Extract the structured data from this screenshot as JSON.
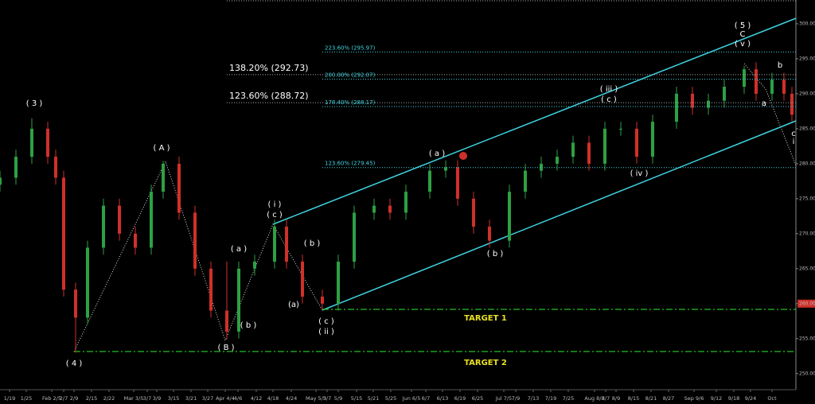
{
  "chart_data": {
    "type": "candlestick",
    "x": [
      0,
      4,
      8,
      12,
      14,
      16,
      19,
      22,
      26,
      30,
      34,
      38,
      41,
      45,
      49,
      53,
      57,
      60,
      64,
      69,
      72,
      76,
      81,
      85,
      89,
      94,
      98,
      102,
      108,
      112,
      115,
      119,
      123,
      128,
      132,
      136,
      140,
      144,
      148,
      152,
      156,
      160,
      164,
      170,
      174,
      178,
      182,
      187,
      190,
      194,
      197,
      199
    ],
    "open": [
      277,
      278,
      281,
      285,
      281,
      278,
      262,
      258,
      268,
      274,
      270,
      268,
      276,
      280,
      273,
      265,
      259,
      256,
      265,
      266,
      271,
      266,
      261,
      260,
      266,
      273,
      274,
      273,
      276,
      279,
      279.5,
      275,
      271,
      269,
      276,
      279,
      280,
      281,
      283,
      280,
      285,
      285,
      281,
      286,
      290,
      288,
      289,
      291,
      293.5,
      290,
      292,
      290
    ],
    "high": [
      279,
      282,
      286.5,
      286,
      282,
      279,
      263,
      269,
      275,
      275,
      271,
      277,
      280.4,
      281,
      274,
      266,
      266,
      266,
      267,
      272,
      272,
      267,
      262,
      267,
      274,
      275,
      275,
      277,
      280,
      280.5,
      280.5,
      276,
      272,
      277,
      280,
      281,
      282,
      284,
      284,
      286,
      286,
      286,
      287,
      291,
      291,
      290,
      292,
      294,
      294.5,
      293,
      293,
      291
    ],
    "low": [
      276,
      277,
      280,
      280,
      277,
      261,
      253,
      257,
      267,
      269,
      267,
      267,
      275,
      272,
      264,
      258,
      254.9,
      255,
      264,
      265,
      265,
      260,
      259.1,
      259,
      265,
      272,
      272,
      272,
      275,
      278,
      274,
      270,
      268,
      268,
      275,
      278,
      279,
      280,
      279,
      279,
      284,
      280,
      280,
      285,
      287,
      287,
      288,
      290,
      289,
      289,
      289,
      286
    ],
    "close": [
      278,
      281,
      285,
      281,
      278,
      262,
      258,
      268,
      274,
      270,
      268,
      276,
      280,
      273,
      265,
      259,
      256,
      265,
      266,
      271,
      266,
      261,
      260,
      266,
      273,
      274,
      273,
      276,
      279,
      279.5,
      275,
      271,
      269,
      276,
      279,
      280,
      281,
      283,
      280,
      285,
      285,
      281,
      286,
      290,
      288,
      289,
      291,
      293.5,
      290,
      292,
      290,
      287
    ],
    "up_color": "#2ea043",
    "down_color": "#d0302a",
    "xlim": [
      0,
      200
    ],
    "xticks": [
      {
        "value": 2.4,
        "label": "1/19"
      },
      {
        "value": 6.6,
        "label": "1/25"
      },
      {
        "value": 13,
        "label": "Feb 2/5"
      },
      {
        "value": 16,
        "label": "2/7"
      },
      {
        "value": 18.6,
        "label": "2/9"
      },
      {
        "value": 23,
        "label": "2/15"
      },
      {
        "value": 27.4,
        "label": "2/22"
      },
      {
        "value": 33.6,
        "label": "Mar 3/5"
      },
      {
        "value": 37,
        "label": "3/7"
      },
      {
        "value": 39.4,
        "label": "3/9"
      },
      {
        "value": 43.6,
        "label": "3/15"
      },
      {
        "value": 48,
        "label": "3/21"
      },
      {
        "value": 52.2,
        "label": "3/27"
      },
      {
        "value": 56.6,
        "label": "Apr 4/4"
      },
      {
        "value": 59.8,
        "label": "4/6"
      },
      {
        "value": 64.4,
        "label": "4/12"
      },
      {
        "value": 68.6,
        "label": "4/18"
      },
      {
        "value": 73.2,
        "label": "4/24"
      },
      {
        "value": 79.4,
        "label": "May 5/3"
      },
      {
        "value": 82.2,
        "label": "5/7"
      },
      {
        "value": 85,
        "label": "5/9"
      },
      {
        "value": 89.6,
        "label": "5/15"
      },
      {
        "value": 93.8,
        "label": "5/21"
      },
      {
        "value": 98.2,
        "label": "5/25"
      },
      {
        "value": 103.4,
        "label": "Jun 6/5"
      },
      {
        "value": 107,
        "label": "6/7"
      },
      {
        "value": 111.2,
        "label": "6/13"
      },
      {
        "value": 115.6,
        "label": "6/19"
      },
      {
        "value": 120,
        "label": "6/25"
      },
      {
        "value": 126.6,
        "label": "Jul 7/5"
      },
      {
        "value": 129.6,
        "label": "7/9"
      },
      {
        "value": 134,
        "label": "7/13"
      },
      {
        "value": 138.4,
        "label": "7/19"
      },
      {
        "value": 142.8,
        "label": "7/25"
      },
      {
        "value": 149.4,
        "label": "Aug 8/3"
      },
      {
        "value": 152.2,
        "label": "8/7"
      },
      {
        "value": 154.8,
        "label": "8/9"
      },
      {
        "value": 159.2,
        "label": "8/15"
      },
      {
        "value": 163.6,
        "label": "8/21"
      },
      {
        "value": 168,
        "label": "8/27"
      },
      {
        "value": 174.4,
        "label": "Sep 9/6"
      },
      {
        "value": 180,
        "label": "9/12"
      },
      {
        "value": 184.4,
        "label": "9/18"
      },
      {
        "value": 188.6,
        "label": "9/24"
      },
      {
        "value": 194,
        "label": "Oct"
      }
    ],
    "ylim": [
      247.7,
      303.4
    ],
    "yticks": [
      {
        "value": 250,
        "label": "250.00"
      },
      {
        "value": 255,
        "label": "255.00"
      },
      {
        "value": 260,
        "label": "260.00"
      },
      {
        "value": 265,
        "label": "265.00"
      },
      {
        "value": 270,
        "label": "270.00"
      },
      {
        "value": 275,
        "label": "275.00"
      },
      {
        "value": 280,
        "label": "280.00"
      },
      {
        "value": 285,
        "label": "285.00"
      },
      {
        "value": 290,
        "label": "290.00"
      },
      {
        "value": 295,
        "label": "295.00"
      },
      {
        "value": 300,
        "label": "300.00"
      }
    ],
    "highlight_tick": 2,
    "fib_levels": [
      {
        "label": "223.60% (295.97)",
        "value": 295.97,
        "color": "#3fd4e0"
      },
      {
        "label": "138.20% (292.73)",
        "value": 292.73,
        "color": "#ffffff"
      },
      {
        "label": "200.00% (292.07)",
        "value": 292.07,
        "color": "#3fd4e0"
      },
      {
        "label": "123.60% (288.72)",
        "value": 288.72,
        "color": "#ffffff"
      },
      {
        "label": "178.40% (288.17)",
        "value": 288.17,
        "color": "#3fd4e0"
      },
      {
        "label": "123.60% (279.45)",
        "value": 279.45,
        "color": "#3fd4e0"
      }
    ],
    "targets": [
      "TARGET 1",
      "TARGET 2"
    ],
    "annotations": [
      "( 3 )",
      "( 4 )",
      "( A )",
      "( B )",
      "( i )",
      "( c )",
      "( a )",
      "( b )",
      "( b )",
      "(a)",
      "( c )",
      "( ii )",
      "( a )",
      "( b )",
      "( iii )",
      "( c )",
      "( iv )",
      "( 5 )",
      "C",
      "( v )",
      "b",
      "a",
      "c",
      "i"
    ]
  }
}
